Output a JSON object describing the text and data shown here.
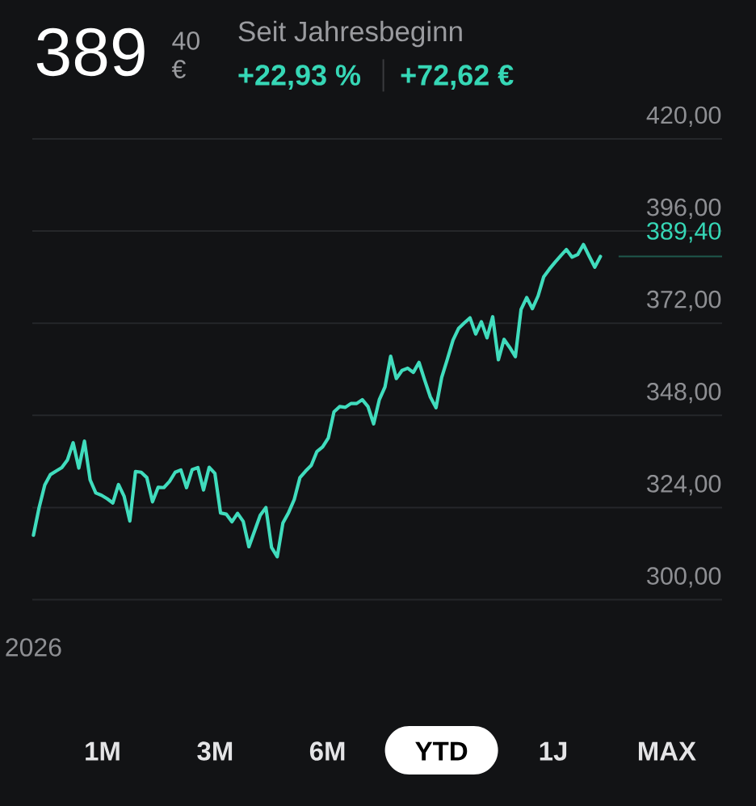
{
  "chart_data": {
    "type": "line",
    "title": "389",
    "subtitle": "Seit Jahresbeginn",
    "categories": [
      "2026",
      null,
      null,
      null,
      null,
      null,
      null,
      null,
      null,
      null,
      null,
      null,
      null,
      null,
      null,
      null,
      null,
      null,
      null,
      null,
      null,
      null,
      null,
      null,
      null,
      null,
      null,
      null,
      null,
      null,
      null,
      null,
      null,
      null,
      null,
      null,
      null,
      null,
      null,
      null,
      null,
      null,
      null,
      null,
      null,
      null,
      null,
      null,
      null,
      null,
      null,
      null,
      null,
      null,
      null,
      null,
      null,
      null,
      null,
      null,
      null,
      null,
      null,
      null,
      null,
      null,
      null,
      null,
      null,
      null,
      null,
      null,
      null,
      null,
      null,
      null,
      null,
      null,
      null,
      null,
      null,
      null,
      null,
      null,
      null,
      null,
      null,
      null,
      null,
      null,
      null,
      null,
      null,
      null,
      null,
      null,
      null,
      null,
      null,
      null,
      null
    ],
    "series": [
      {
        "color": "#40dcbd",
        "values": [
          316.8,
          324.0,
          329.9,
          332.6,
          333.5,
          334.4,
          336.4,
          340.9,
          334.3,
          341.3,
          331.2,
          327.8,
          327.2,
          326.3,
          325.2,
          330.0,
          326.9,
          320.5,
          333.4,
          333.2,
          331.8,
          325.5,
          329.3,
          329.2,
          330.8,
          333.2,
          333.8,
          329.2,
          333.9,
          334.4,
          328.6,
          334.5,
          332.9,
          322.6,
          322.3,
          320.3,
          322.5,
          320.4,
          313.8,
          317.9,
          322.0,
          324.0,
          313.6,
          311.2,
          320.0,
          322.7,
          326.1,
          331.8,
          333.5,
          335.0,
          338.6,
          339.8,
          342.1,
          348.9,
          350.3,
          350.1,
          351.1,
          351.1,
          352.1,
          350.3,
          345.8,
          352.1,
          355.4,
          363.4,
          357.6,
          359.7,
          360.3,
          359.2,
          361.8,
          357.2,
          352.8,
          350.0,
          357.9,
          362.6,
          367.6,
          370.7,
          372.1,
          373.4,
          369.2,
          372.4,
          368.2,
          373.7,
          362.5,
          367.8,
          365.7,
          363.3,
          375.6,
          378.7,
          375.8,
          379.1,
          384.1,
          386.1,
          387.9,
          389.6,
          391.2,
          389.2,
          389.9,
          392.5,
          389.5,
          386.6,
          389.4
        ]
      }
    ],
    "ylim": [
      300,
      420
    ],
    "yticks": [
      {
        "value": 300,
        "label": "300,00"
      },
      {
        "value": 324,
        "label": "324,00"
      },
      {
        "value": 348,
        "label": "348,00"
      },
      {
        "value": 372,
        "label": "372,00"
      },
      {
        "value": 396,
        "label": "396,00"
      },
      {
        "value": 420,
        "label": "420,00"
      }
    ],
    "grid": "y",
    "ref_lines": [
      {
        "axis": "y",
        "value": 389.4,
        "label": "389,40",
        "color": "#1f584d"
      }
    ],
    "annotations": [
      "40",
      "€",
      "+22,93 %",
      "+72,62 €",
      "1M",
      "3M",
      "6M",
      "YTD",
      "1J",
      "MAX"
    ]
  }
}
